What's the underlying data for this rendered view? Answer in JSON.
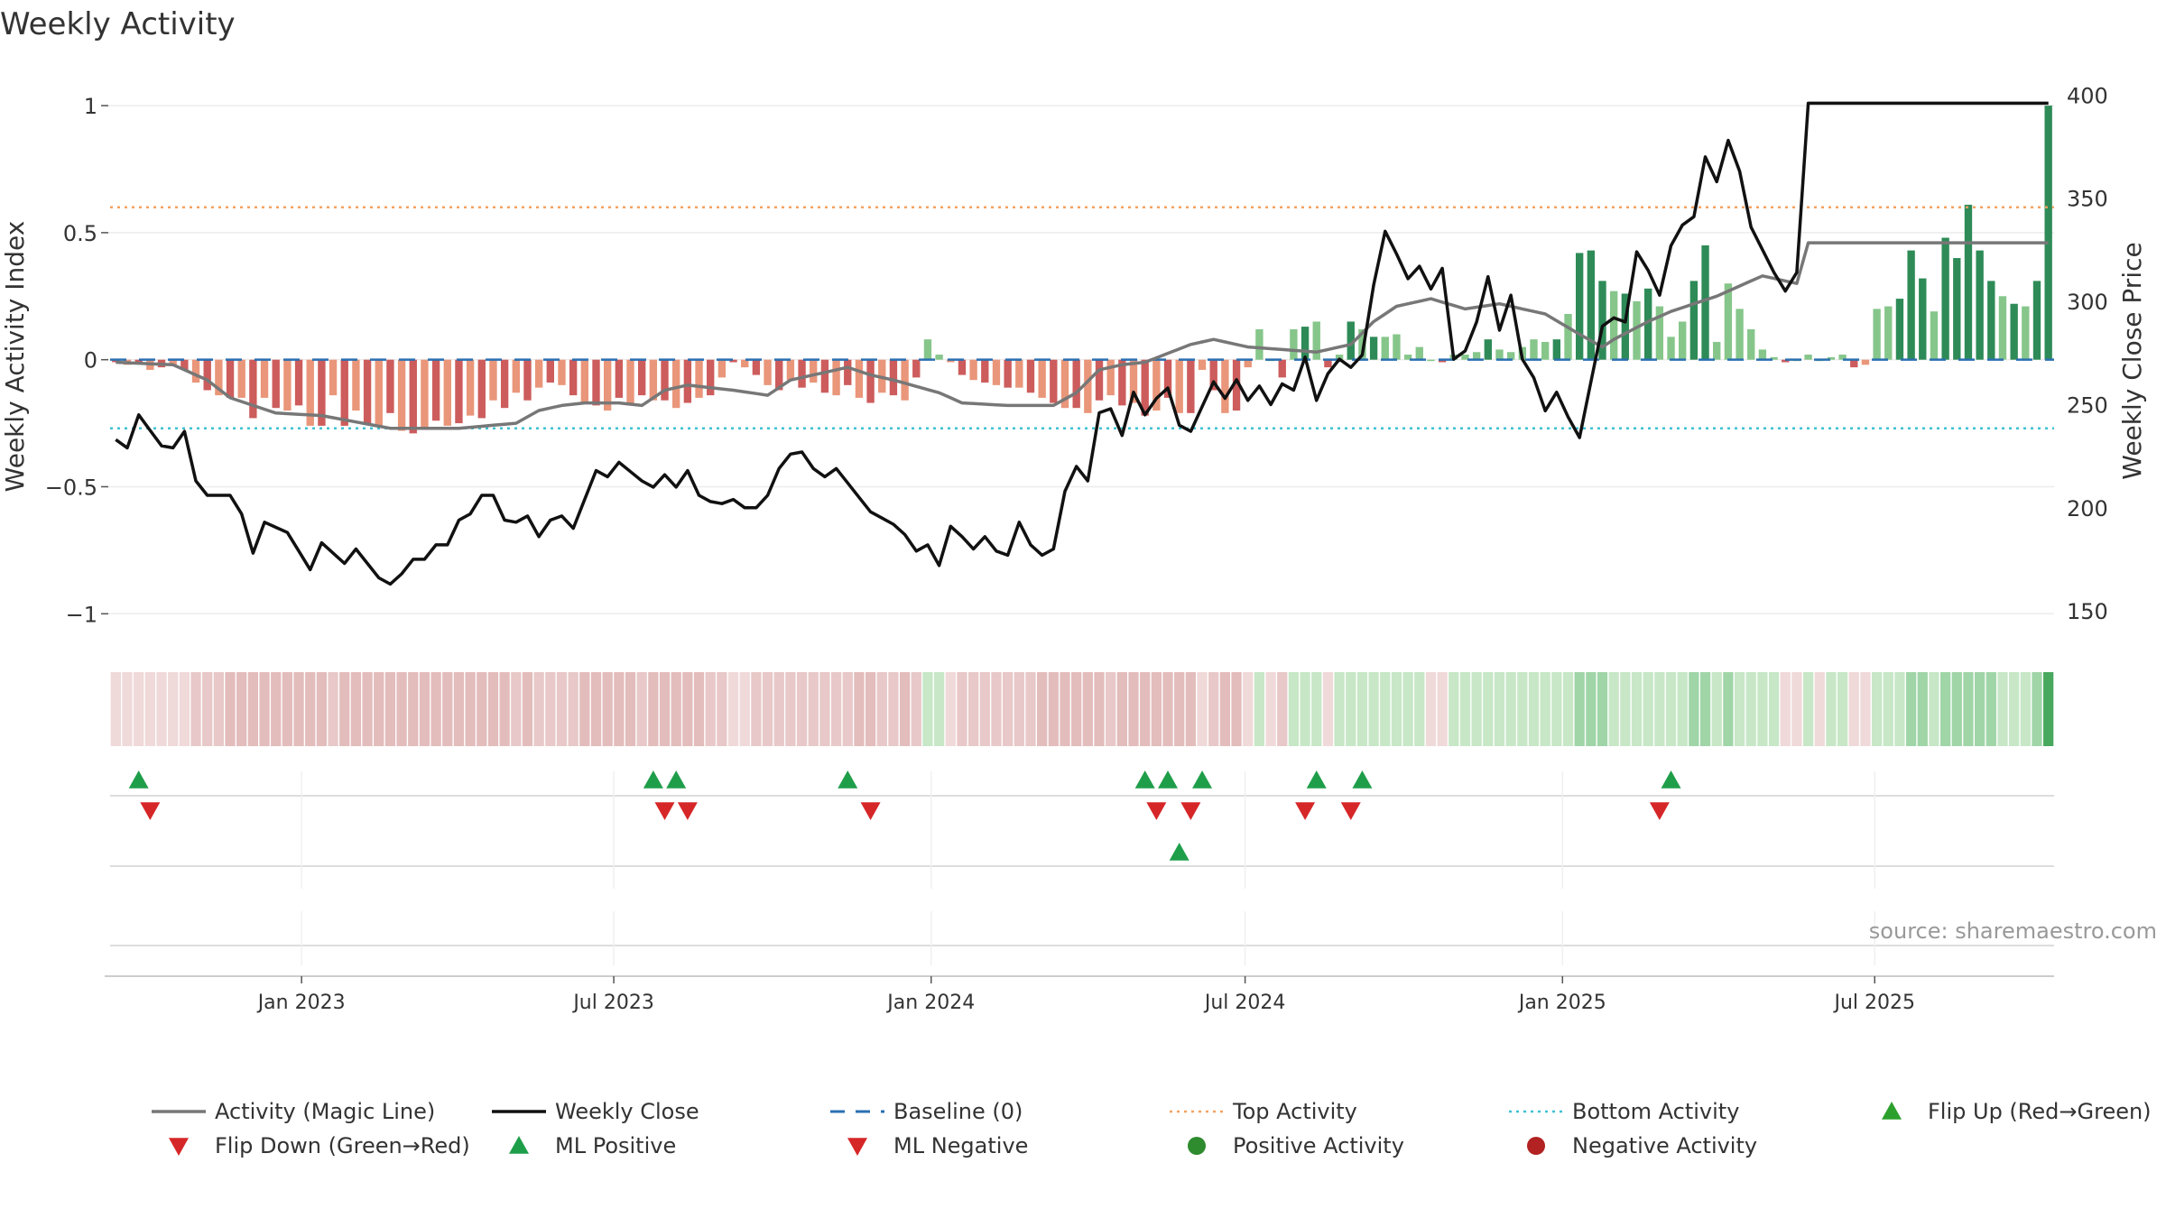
{
  "chart_data": {
    "type": "bar",
    "title": "Weekly Activity",
    "ylabel_left": "Weekly Activity Index",
    "ylabel_right": "Weekly Close Price",
    "source": "source: sharemaestro.com",
    "left_axis": {
      "ylim": [
        -1.07,
        1.05
      ],
      "ticks": [
        1,
        0.5,
        0,
        -0.5,
        -1
      ],
      "tick_labels": [
        "1",
        "0.5",
        "0",
        "−0.5",
        "−1"
      ]
    },
    "right_axis": {
      "ylim": [
        140,
        401
      ],
      "ticks": [
        400,
        350,
        300,
        250,
        200,
        150
      ],
      "tick_labels": [
        "400",
        "350",
        "300",
        "250",
        "200",
        "150"
      ]
    },
    "date_range": [
      "2022-09-12",
      "2025-10-13"
    ],
    "x_ticks": [
      {
        "label": "Jan 2023",
        "date": "2023-01-01"
      },
      {
        "label": "Jul 2023",
        "date": "2023-07-01"
      },
      {
        "label": "Jan 2024",
        "date": "2024-01-01"
      },
      {
        "label": "Jul 2024",
        "date": "2024-07-01"
      },
      {
        "label": "Jan 2025",
        "date": "2025-01-01"
      },
      {
        "label": "Jul 2025",
        "date": "2025-07-01"
      }
    ],
    "top_activity": 0.6,
    "bottom_activity": -0.27,
    "baseline": 0,
    "weekly_close_anchors": [
      [
        0,
        233
      ],
      [
        1,
        229
      ],
      [
        2,
        245
      ],
      [
        4,
        230
      ],
      [
        5,
        229
      ],
      [
        6,
        237
      ],
      [
        7,
        213
      ],
      [
        8,
        206
      ],
      [
        10,
        206
      ],
      [
        11,
        197
      ],
      [
        12,
        178
      ],
      [
        13,
        193
      ],
      [
        15,
        188
      ],
      [
        17,
        170
      ],
      [
        18,
        183
      ],
      [
        20,
        173
      ],
      [
        21,
        180
      ],
      [
        23,
        166
      ],
      [
        24,
        163
      ],
      [
        25,
        168
      ],
      [
        26,
        175
      ],
      [
        27,
        175
      ],
      [
        28,
        182
      ],
      [
        29,
        182
      ],
      [
        30,
        194
      ],
      [
        31,
        197
      ],
      [
        32,
        206
      ],
      [
        33,
        206
      ],
      [
        34,
        194
      ],
      [
        35,
        193
      ],
      [
        36,
        196
      ],
      [
        37,
        186
      ],
      [
        38,
        194
      ],
      [
        39,
        196
      ],
      [
        40,
        190
      ],
      [
        42,
        218
      ],
      [
        43,
        215
      ],
      [
        44,
        222
      ],
      [
        46,
        213
      ],
      [
        47,
        210
      ],
      [
        48,
        216
      ],
      [
        49,
        210
      ],
      [
        50,
        218
      ],
      [
        51,
        206
      ],
      [
        52,
        203
      ],
      [
        53,
        202
      ],
      [
        54,
        204
      ],
      [
        55,
        200
      ],
      [
        56,
        200
      ],
      [
        57,
        206
      ],
      [
        58,
        219
      ],
      [
        59,
        226
      ],
      [
        60,
        227
      ],
      [
        61,
        219
      ],
      [
        62,
        215
      ],
      [
        63,
        219
      ],
      [
        65,
        205
      ],
      [
        66,
        198
      ],
      [
        67,
        195
      ],
      [
        68,
        192
      ],
      [
        69,
        187
      ],
      [
        70,
        179
      ],
      [
        71,
        182
      ],
      [
        72,
        172
      ],
      [
        73,
        191
      ],
      [
        74,
        186
      ],
      [
        75,
        180
      ],
      [
        76,
        186
      ],
      [
        77,
        179
      ],
      [
        78,
        177
      ],
      [
        79,
        193
      ],
      [
        80,
        182
      ],
      [
        81,
        177
      ],
      [
        82,
        180
      ],
      [
        83,
        208
      ],
      [
        84,
        220
      ],
      [
        85,
        213
      ],
      [
        86,
        246
      ],
      [
        87,
        248
      ],
      [
        88,
        235
      ],
      [
        89,
        256
      ],
      [
        90,
        245
      ],
      [
        91,
        253
      ],
      [
        92,
        258
      ],
      [
        93,
        240
      ],
      [
        94,
        237
      ],
      [
        96,
        261
      ],
      [
        97,
        253
      ],
      [
        98,
        262
      ],
      [
        99,
        252
      ],
      [
        100,
        259
      ],
      [
        101,
        250
      ],
      [
        102,
        260
      ],
      [
        103,
        257
      ],
      [
        104,
        273
      ],
      [
        105,
        252
      ],
      [
        106,
        265
      ],
      [
        107,
        272
      ],
      [
        108,
        268
      ],
      [
        109,
        274
      ],
      [
        110,
        308
      ],
      [
        111,
        334
      ],
      [
        112,
        323
      ],
      [
        113,
        311
      ],
      [
        114,
        317
      ],
      [
        115,
        306
      ],
      [
        116,
        316
      ],
      [
        117,
        272
      ],
      [
        118,
        276
      ],
      [
        119,
        290
      ],
      [
        120,
        312
      ],
      [
        121,
        286
      ],
      [
        122,
        303
      ],
      [
        123,
        272
      ],
      [
        124,
        263
      ],
      [
        125,
        247
      ],
      [
        126,
        256
      ],
      [
        127,
        244
      ],
      [
        128,
        234
      ],
      [
        130,
        288
      ],
      [
        131,
        292
      ],
      [
        132,
        290
      ],
      [
        133,
        324
      ],
      [
        134,
        315
      ],
      [
        135,
        303
      ],
      [
        136,
        327
      ],
      [
        137,
        337
      ],
      [
        138,
        341
      ],
      [
        139,
        370
      ],
      [
        140,
        358
      ],
      [
        141,
        378
      ],
      [
        142,
        363
      ],
      [
        143,
        336
      ],
      [
        144,
        325
      ],
      [
        145,
        314
      ],
      [
        146,
        305
      ],
      [
        147,
        314
      ],
      [
        148,
        396
      ]
    ],
    "activity_anchors": [
      [
        0,
        -0.01
      ],
      [
        5,
        -0.02
      ],
      [
        8,
        -0.08
      ],
      [
        10,
        -0.15
      ],
      [
        14,
        -0.21
      ],
      [
        18,
        -0.22
      ],
      [
        24,
        -0.27
      ],
      [
        30,
        -0.27
      ],
      [
        35,
        -0.25
      ],
      [
        37,
        -0.2
      ],
      [
        39,
        -0.18
      ],
      [
        41,
        -0.17
      ],
      [
        44,
        -0.17
      ],
      [
        46,
        -0.18
      ],
      [
        48,
        -0.12
      ],
      [
        50,
        -0.1
      ],
      [
        54,
        -0.12
      ],
      [
        57,
        -0.14
      ],
      [
        59,
        -0.08
      ],
      [
        62,
        -0.05
      ],
      [
        64,
        -0.03
      ],
      [
        66,
        -0.06
      ],
      [
        68,
        -0.08
      ],
      [
        72,
        -0.13
      ],
      [
        74,
        -0.17
      ],
      [
        78,
        -0.18
      ],
      [
        82,
        -0.18
      ],
      [
        84,
        -0.13
      ],
      [
        86,
        -0.04
      ],
      [
        88,
        -0.02
      ],
      [
        90,
        -0.01
      ],
      [
        94,
        0.06
      ],
      [
        96,
        0.08
      ],
      [
        99,
        0.05
      ],
      [
        102,
        0.04
      ],
      [
        105,
        0.03
      ],
      [
        108,
        0.06
      ],
      [
        110,
        0.15
      ],
      [
        112,
        0.21
      ],
      [
        115,
        0.24
      ],
      [
        118,
        0.2
      ],
      [
        121,
        0.22
      ],
      [
        123,
        0.2
      ],
      [
        125,
        0.18
      ],
      [
        128,
        0.1
      ],
      [
        130,
        0.05
      ],
      [
        131,
        0.08
      ],
      [
        134,
        0.15
      ],
      [
        136,
        0.19
      ],
      [
        140,
        0.25
      ],
      [
        144,
        0.33
      ],
      [
        147,
        0.3
      ],
      [
        148,
        0.46
      ]
    ],
    "heat_strip_colors": [
      "#f0d9d9",
      "#dbedd8",
      "#f2e0e0",
      "#e8c8c8",
      "#e3bcbc",
      "#c7e7c7",
      "#e7c7c7",
      "#dbb8b8",
      "#a0d5a8",
      "#48a85e"
    ],
    "series": [
      {
        "name": "Weekly Activity Index",
        "values": [
          -0.01,
          -0.02,
          -0.01,
          -0.04,
          -0.03,
          -0.02,
          -0.04,
          -0.09,
          -0.12,
          -0.14,
          -0.15,
          -0.15,
          -0.23,
          -0.15,
          -0.19,
          -0.2,
          -0.18,
          -0.26,
          -0.26,
          -0.14,
          -0.26,
          -0.2,
          -0.25,
          -0.26,
          -0.21,
          -0.28,
          -0.29,
          -0.27,
          -0.24,
          -0.26,
          -0.25,
          -0.22,
          -0.23,
          -0.16,
          -0.19,
          -0.13,
          -0.16,
          -0.11,
          -0.09,
          -0.1,
          -0.14,
          -0.17,
          -0.18,
          -0.2,
          -0.15,
          -0.18,
          -0.14,
          -0.16,
          -0.16,
          -0.19,
          -0.17,
          -0.15,
          -0.14,
          -0.07,
          -0.01,
          -0.03,
          -0.06,
          -0.1,
          -0.12,
          -0.08,
          -0.11,
          -0.09,
          -0.13,
          -0.14,
          -0.1,
          -0.15,
          -0.17,
          -0.13,
          -0.14,
          -0.16,
          -0.07,
          0.08,
          0.02,
          -0.01,
          -0.06,
          -0.08,
          -0.09,
          -0.1,
          -0.11,
          -0.11,
          -0.13,
          -0.15,
          -0.17,
          -0.19,
          -0.19,
          -0.21,
          -0.16,
          -0.14,
          -0.18,
          -0.17,
          -0.22,
          -0.2,
          -0.15,
          -0.21,
          -0.21,
          -0.04,
          -0.12,
          -0.21,
          -0.2,
          -0.03,
          0.12,
          0.0,
          -0.07,
          0.12,
          0.13,
          0.15,
          -0.03,
          0.02,
          0.15,
          0.12,
          0.09,
          0.09,
          0.1,
          0.02,
          0.05,
          0.0,
          -0.01,
          0.02,
          0.02,
          0.03,
          0.08,
          0.04,
          0.03,
          0.05,
          0.08,
          0.07,
          0.08,
          0.18,
          0.42,
          0.43,
          0.31,
          0.27,
          0.26,
          0.23,
          0.28,
          0.21,
          0.09,
          0.15,
          0.31,
          0.45,
          0.07,
          0.3,
          0.2,
          0.12,
          0.04,
          0.01,
          -0.01,
          0.0,
          0.02,
          0.0,
          0.01,
          0.02,
          -0.03,
          -0.02,
          0.2,
          0.21,
          0.24,
          0.43,
          0.32,
          0.19,
          0.48,
          0.4,
          0.61,
          0.43,
          0.31,
          0.25,
          0.22,
          0.21,
          0.31,
          1.0
        ]
      }
    ],
    "ml_positive_markers": [
      2,
      47,
      49,
      64,
      90,
      92,
      95,
      105,
      109,
      136
    ],
    "ml_negative_markers": [
      3,
      48,
      50,
      66,
      91,
      94,
      104,
      108,
      135
    ],
    "row3_markers": [
      93
    ],
    "legend": [
      {
        "label": "Activity (Magic Line)",
        "symbol": "line",
        "color": "#777777"
      },
      {
        "label": "Weekly Close",
        "symbol": "line",
        "color": "#111111"
      },
      {
        "label": "Baseline (0)",
        "symbol": "dash",
        "color": "#2a6fb0"
      },
      {
        "label": "Top Activity",
        "symbol": "dot-line",
        "color": "#f4a261"
      },
      {
        "label": "Bottom Activity",
        "symbol": "dot-line",
        "color": "#3ec1d3"
      },
      {
        "label": "Flip Up (Red→Green)",
        "symbol": "triangle-up",
        "color": "#2ca02c"
      },
      {
        "label": "Flip Down (Green→Red)",
        "symbol": "triangle-down",
        "color": "#d62728"
      },
      {
        "label": "ML Positive",
        "symbol": "triangle-up",
        "color": "#1f9e4a"
      },
      {
        "label": "ML Negative",
        "symbol": "triangle-down",
        "color": "#d62728"
      },
      {
        "label": "Positive Activity",
        "symbol": "circle",
        "color": "#2e8b2e"
      },
      {
        "label": "Negative Activity",
        "symbol": "circle",
        "color": "#b22222"
      }
    ],
    "colors": {
      "positive_strong": "#2e8b57",
      "positive_light": "#86c68a",
      "negative_strong": "#cd5c5c",
      "negative_light": "#e9967a",
      "gain_up": "#1f9e4a",
      "gain_down": "#d62728"
    }
  }
}
